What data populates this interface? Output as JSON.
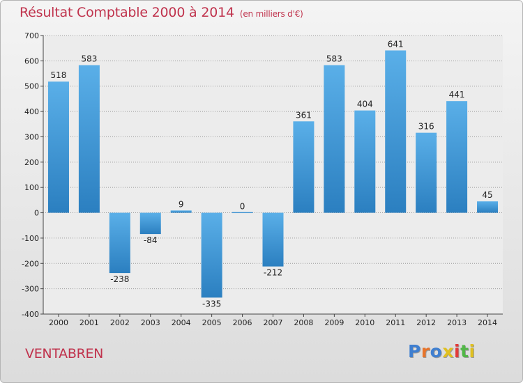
{
  "header": {
    "title": "Résultat Comptable 2000 à 2014",
    "subtitle": "(en milliers d'€)"
  },
  "footer": {
    "city": "VENTABREN",
    "brand": "Proxiti"
  },
  "colors": {
    "title": "#c0334d",
    "bar_light": "#5aafe8",
    "bar_dark": "#2b7fc0",
    "brand_letters": [
      "#3f7fd0",
      "#e8742a",
      "#3f7fd0",
      "#e0c020",
      "#e23b3b",
      "#52b748",
      "#e0c020"
    ]
  },
  "chart_data": {
    "type": "bar",
    "title": "Résultat Comptable 2000 à 2014",
    "subtitle": "(en milliers d'€)",
    "xlabel": "",
    "ylabel": "",
    "categories": [
      "2000",
      "2001",
      "2002",
      "2003",
      "2004",
      "2005",
      "2006",
      "2007",
      "2008",
      "2009",
      "2010",
      "2011",
      "2012",
      "2013",
      "2014"
    ],
    "values": [
      518,
      583,
      -238,
      -84,
      9,
      -335,
      0,
      -212,
      361,
      583,
      404,
      641,
      316,
      441,
      45
    ],
    "value_labels": [
      "518",
      "583",
      "-238",
      "-84",
      "9",
      "-335",
      "0",
      "-212",
      "361",
      "583",
      "404",
      "641",
      "316",
      "441",
      "45"
    ],
    "ylim": [
      -400,
      700
    ],
    "yticks": [
      -400,
      -300,
      -200,
      -100,
      0,
      100,
      200,
      300,
      400,
      500,
      600,
      700
    ],
    "grid": true
  }
}
